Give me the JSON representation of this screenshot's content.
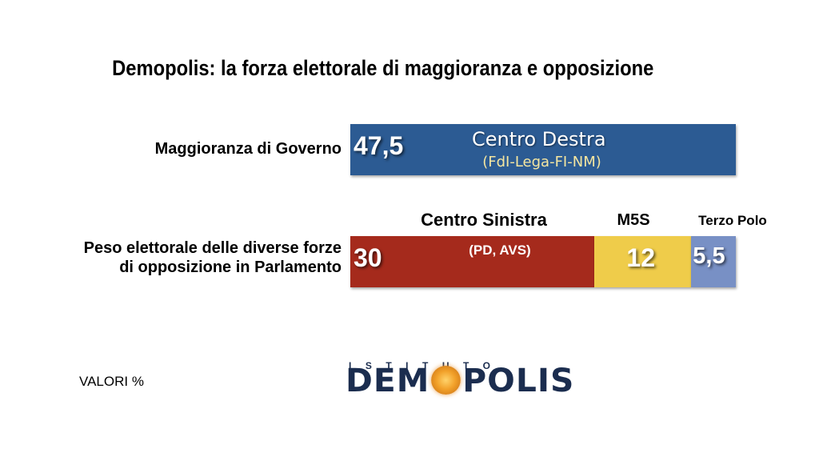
{
  "title": "Demopolis: la forza elettorale di maggioranza e opposizione",
  "valori_label": "VALORI %",
  "logo": {
    "top_text": "ISTITUTO",
    "main_text_before": "DEM",
    "main_text_after": "POLIS"
  },
  "colors": {
    "centro_destra": "#2c5b93",
    "centro_sinistra": "#a52a1c",
    "m5s": "#efcc4a",
    "terzo_polo": "#7890c5",
    "subtitle_yellow": "#f5e6a0"
  },
  "chart_data": {
    "type": "bar",
    "orientation": "horizontal-stacked",
    "title": "Demopolis: la forza elettorale di maggioranza e opposizione",
    "unit": "VALORI %",
    "categories": [
      "Maggioranza di Governo",
      "Peso elettorale delle diverse forze di opposizione in Parlamento"
    ],
    "rows": [
      {
        "label_line1": "Maggioranza di Governo",
        "label_line2": "",
        "segments": [
          {
            "name": "Centro Destra",
            "detail": "(FdI-Lega-FI-NM)",
            "value": 47.5,
            "value_text": "47,5"
          }
        ]
      },
      {
        "label_line1": "Peso elettorale delle diverse forze",
        "label_line2": "di opposizione in Parlamento",
        "segments": [
          {
            "name": "Centro Sinistra",
            "detail": "(PD, AVS)",
            "value": 30,
            "value_text": "30"
          },
          {
            "name": "M5S",
            "detail": "",
            "value": 12,
            "value_text": "12"
          },
          {
            "name": "Terzo Polo",
            "detail": "",
            "value": 5.5,
            "value_text": "5,5"
          }
        ]
      }
    ]
  }
}
